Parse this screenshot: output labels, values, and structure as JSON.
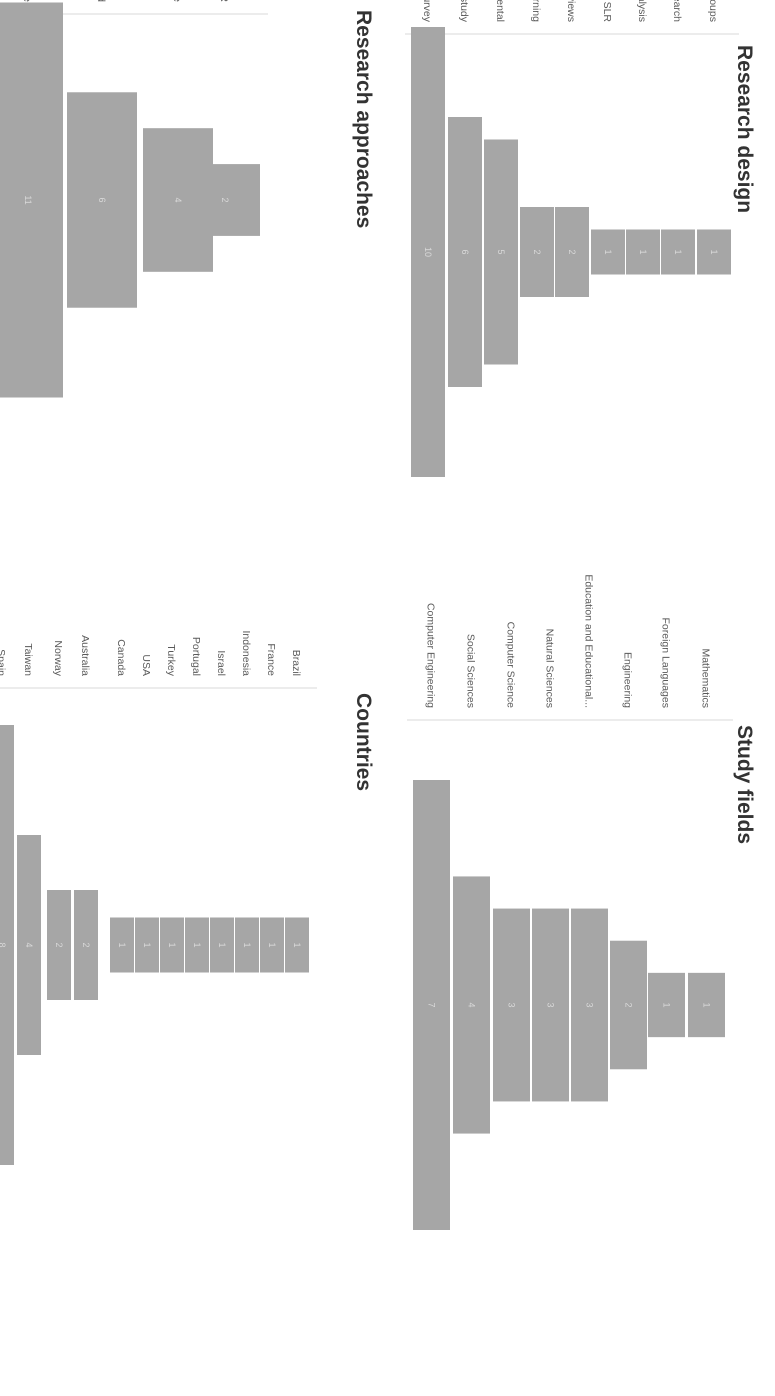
{
  "chart_data": [
    {
      "type": "bar",
      "title": "Study fields",
      "categories": [
        "Mathematics",
        "Foreign Languages",
        "Engineering",
        "Education and Educational...",
        "Natural Sciences",
        "Computer Science",
        "Social Sciences",
        "Computer Engineering"
      ],
      "values": [
        1,
        1,
        2,
        3,
        3,
        3,
        4,
        7
      ],
      "xlabel": "",
      "ylabel": "",
      "ylim": [
        0,
        7
      ],
      "style": "funnel",
      "grid": false
    },
    {
      "type": "bar",
      "title": "Research design",
      "categories": [
        "Focus groups",
        "Action research",
        "Reflection analysis",
        "SLR",
        "Interviews",
        "Deep learning",
        "Experimental",
        "Case study",
        "Survey"
      ],
      "values": [
        1,
        1,
        1,
        1,
        2,
        2,
        5,
        6,
        10
      ],
      "xlabel": "",
      "ylabel": "",
      "ylim": [
        0,
        10
      ],
      "style": "funnel",
      "grid": false
    },
    {
      "type": "bar",
      "title": "Countries",
      "categories": [
        "Brazil",
        "France",
        "Indonesia",
        "Israel",
        "Portugal",
        "Turkey",
        "USA",
        "Canada",
        "Australia",
        "Norway",
        "Taiwan",
        "Spain"
      ],
      "values": [
        1,
        1,
        1,
        1,
        1,
        1,
        1,
        1,
        2,
        2,
        4,
        8
      ],
      "xlabel": "",
      "ylabel": "",
      "ylim": [
        0,
        8
      ],
      "style": "funnel",
      "grid": false
    },
    {
      "type": "bar",
      "title": "Research approaches",
      "categories": [
        "SLR",
        "Qualitative",
        "Mixed",
        "Quantitative"
      ],
      "values": [
        2,
        4,
        6,
        11
      ],
      "xlabel": "",
      "ylabel": "",
      "ylim": [
        0,
        11
      ],
      "style": "funnel",
      "grid": false
    }
  ],
  "colors": {
    "bar": "#a6a6a6",
    "value_text": "#d9d9d9",
    "label_text": "#595959",
    "title_text": "#333333"
  }
}
